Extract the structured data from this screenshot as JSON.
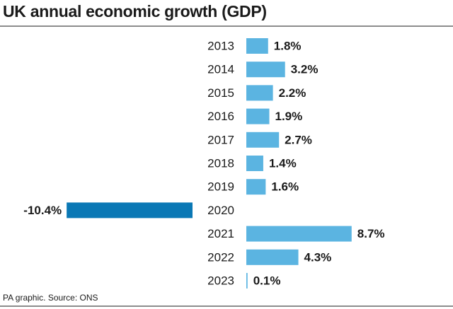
{
  "chart_data": {
    "type": "hbar",
    "title": "UK annual economic growth (GDP)",
    "source": "PA graphic. Source: ONS",
    "categories": [
      "2013",
      "2014",
      "2015",
      "2016",
      "2017",
      "2018",
      "2019",
      "2020",
      "2021",
      "2022",
      "2023"
    ],
    "values": [
      1.8,
      3.2,
      2.2,
      1.9,
      2.7,
      1.4,
      1.6,
      -10.4,
      8.7,
      4.3,
      0.1
    ],
    "value_labels": [
      "1.8%",
      "3.2%",
      "2.2%",
      "1.9%",
      "2.7%",
      "1.4%",
      "1.6%",
      "-10.4%",
      "8.7%",
      "4.3%",
      "0.1%"
    ],
    "color": "#5bb4e1",
    "negative_color": "#0a78b5"
  }
}
